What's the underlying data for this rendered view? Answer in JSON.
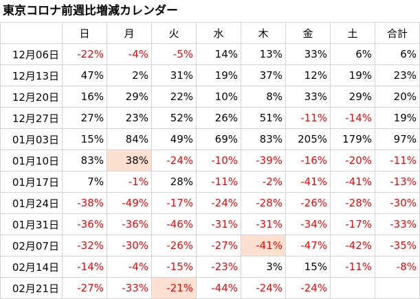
{
  "title": "東京コロナ前週比増減カレンダー",
  "colors": {
    "negative": "#ff0000",
    "highlight": "#fde0d0",
    "grid": "#d4d4d4"
  },
  "headers": [
    "日",
    "月",
    "火",
    "水",
    "木",
    "金",
    "土",
    "合計"
  ],
  "rows": [
    {
      "date": "12月06日",
      "values": [
        "-22%",
        "-4%",
        "-5%",
        "14%",
        "13%",
        "33%",
        "6%",
        "6%"
      ]
    },
    {
      "date": "12月13日",
      "values": [
        "47%",
        "2%",
        "31%",
        "19%",
        "37%",
        "12%",
        "19%",
        "23%"
      ]
    },
    {
      "date": "12月20日",
      "values": [
        "16%",
        "29%",
        "22%",
        "10%",
        "8%",
        "33%",
        "29%",
        "20%"
      ]
    },
    {
      "date": "12月27日",
      "values": [
        "27%",
        "23%",
        "52%",
        "26%",
        "51%",
        "-11%",
        "-14%",
        "19%"
      ]
    },
    {
      "date": "01月03日",
      "values": [
        "15%",
        "84%",
        "49%",
        "69%",
        "83%",
        "205%",
        "179%",
        "97%"
      ]
    },
    {
      "date": "01月10日",
      "values": [
        "83%",
        "38%",
        "-24%",
        "-10%",
        "-39%",
        "-16%",
        "-20%",
        "-11%"
      ],
      "highlight": [
        1
      ]
    },
    {
      "date": "01月17日",
      "values": [
        "7%",
        "-1%",
        "28%",
        "-11%",
        "-2%",
        "-41%",
        "-41%",
        "-13%"
      ]
    },
    {
      "date": "01月24日",
      "values": [
        "-38%",
        "-49%",
        "-17%",
        "-24%",
        "-28%",
        "-26%",
        "-28%",
        "-30%"
      ]
    },
    {
      "date": "01月31日",
      "values": [
        "-36%",
        "-36%",
        "-46%",
        "-31%",
        "-31%",
        "-34%",
        "-17%",
        "-33%"
      ]
    },
    {
      "date": "02月07日",
      "values": [
        "-32%",
        "-30%",
        "-26%",
        "-27%",
        "-41%",
        "-47%",
        "-42%",
        "-35%"
      ],
      "highlight": [
        4
      ]
    },
    {
      "date": "02月14日",
      "values": [
        "-14%",
        "-4%",
        "-15%",
        "-23%",
        "3%",
        "15%",
        "-11%",
        "-8%"
      ]
    },
    {
      "date": "02月21日",
      "values": [
        "-27%",
        "-33%",
        "-21%",
        "-44%",
        "-24%",
        "-24%",
        "",
        ""
      ],
      "highlight": [
        2
      ]
    }
  ]
}
